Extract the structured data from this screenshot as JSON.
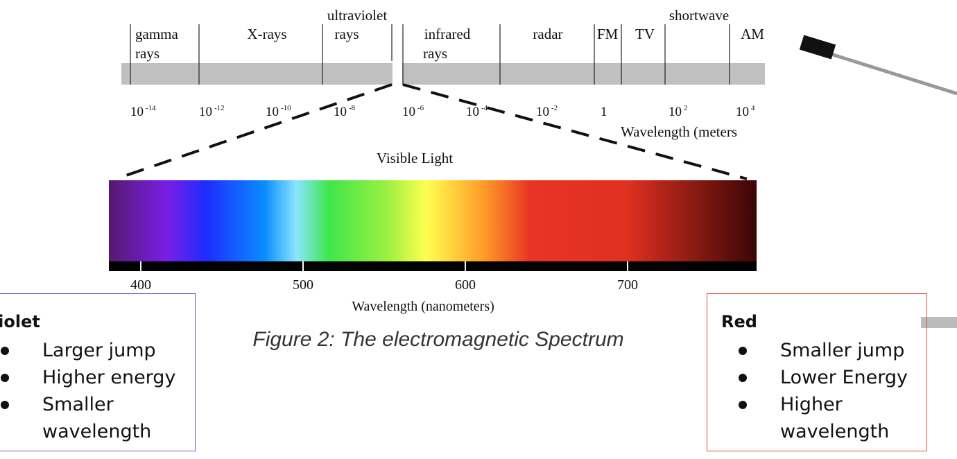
{
  "em_spectrum": {
    "labels": [
      "gamma",
      "rays",
      "X-rays",
      "ultraviolet",
      "rays",
      "infrared",
      "rays",
      "radar",
      "FM",
      "TV",
      "shortwave",
      "AM"
    ],
    "wavelengths": [
      {
        "base": "10",
        "exp": "-14"
      },
      {
        "base": "10",
        "exp": "-12"
      },
      {
        "base": "10",
        "exp": "-10"
      },
      {
        "base": "10",
        "exp": "-8"
      },
      {
        "base": "10",
        "exp": "-6"
      },
      {
        "base": "10",
        "exp": "-4"
      },
      {
        "base": "10",
        "exp": "-2"
      },
      {
        "base": "1"
      },
      {
        "base": "10",
        "exp": "2"
      },
      {
        "base": "10",
        "exp": "4"
      }
    ],
    "axis_label": "Wavelength (meters"
  },
  "visible": {
    "title": "Visible Light",
    "ticks": [
      400,
      500,
      600,
      700
    ],
    "axis_label": "Wavelength (nanometers)"
  },
  "caption": "Figure 2: The electromagnetic Spectrum",
  "violet_box": {
    "title": "Violet",
    "items": [
      "Larger jump",
      "Higher energy",
      "Smaller wavelength"
    ]
  },
  "red_box": {
    "title": "Red",
    "items": [
      "Smaller jump",
      "Lower Energy",
      "Higher wavelength"
    ]
  }
}
